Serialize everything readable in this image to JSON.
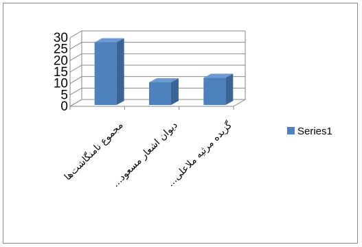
{
  "chart_data": {
    "type": "bar",
    "three_d": true,
    "categories": [
      "مجموع نامنگاشت‌ها",
      "...دیوان اشعار مسعود",
      "...گزیده مرثیه ملاعلی"
    ],
    "series": [
      {
        "name": "Series1",
        "values": [
          28,
          10.5,
          12.5
        ],
        "color": "#4f81bd"
      }
    ],
    "ylim": [
      0,
      30
    ],
    "yticks": [
      "0",
      "5",
      "10",
      "15",
      "20",
      "25",
      "30"
    ],
    "grid": true,
    "legend_position": "right",
    "title": "",
    "xlabel": "",
    "ylabel": ""
  }
}
